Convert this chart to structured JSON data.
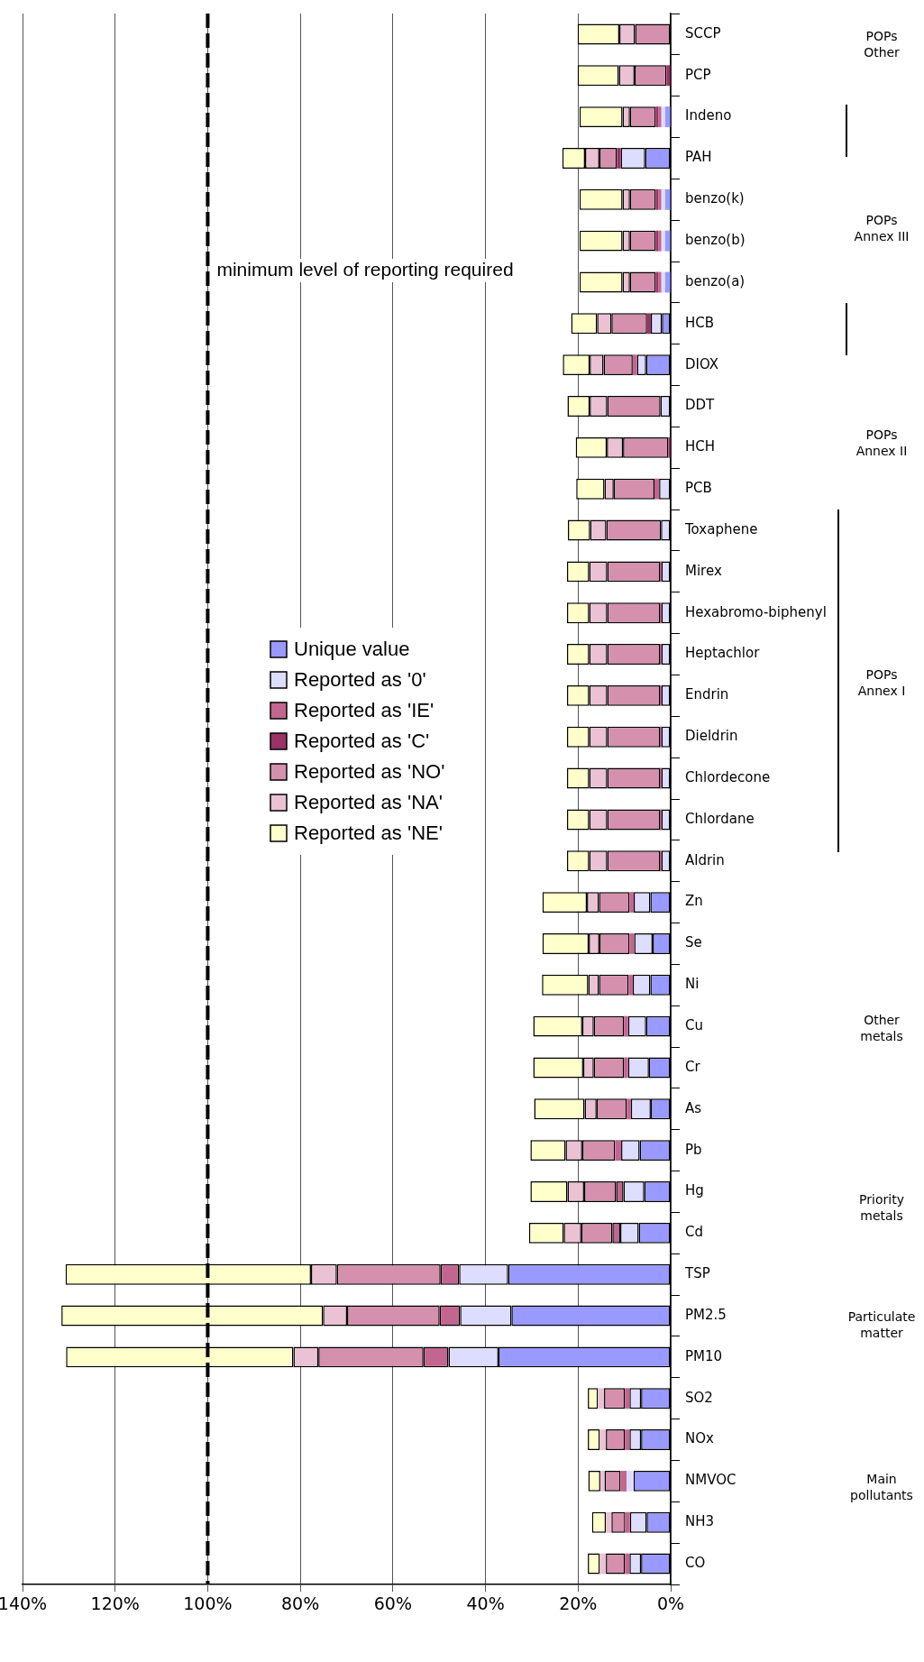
{
  "chart_data": {
    "type": "bar",
    "stacked": true,
    "orientation": "horizontal",
    "categories": [
      "SCCP",
      "PCP",
      "Indeno",
      "PAH",
      "benzo(k)",
      "benzo(b)",
      "benzo(a)",
      "HCB",
      "DIOX",
      "DDT",
      "HCH",
      "PCB",
      "Toxaphene",
      "Mirex",
      "Hexabromo-biphenyl",
      "Heptachlor",
      "Endrin",
      "Dieldrin",
      "Chlordecone",
      "Chlordane",
      "Aldrin",
      "Zn",
      "Se",
      "Ni",
      "Cu",
      "Cr",
      "As",
      "Pb",
      "Hg",
      "Cd",
      "TSP",
      "PM2.5",
      "PM10",
      "SO2",
      "NOx",
      "NMVOC",
      "NH3",
      "CO"
    ],
    "series": [
      {
        "name": "Unique value",
        "color": "#9999ff",
        "values": [
          null,
          null,
          1.2,
          5.5,
          1.2,
          1.2,
          1.2,
          1.9,
          5.3,
          null,
          null,
          null,
          null,
          null,
          null,
          null,
          null,
          null,
          null,
          null,
          null,
          4.4,
          3.9,
          4.4,
          5.3,
          4.7,
          4.3,
          6.7,
          5.7,
          6.9,
          35.1,
          34.4,
          37.2,
          6.4,
          6.4,
          8.0,
          5.2,
          6.4
        ]
      },
      {
        "name": "Reported as '0'",
        "color": "#ddddff",
        "values": [
          null,
          null,
          0.8,
          5.3,
          0.8,
          0.8,
          0.8,
          2.4,
          2.0,
          2.2,
          null,
          2.5,
          2.1,
          2.0,
          2.0,
          2.0,
          2.0,
          2.0,
          2.0,
          2.0,
          2.0,
          3.6,
          4.0,
          3.8,
          3.9,
          4.5,
          4.3,
          4.0,
          4.5,
          4.0,
          10.6,
          11.1,
          10.8,
          2.5,
          2.5,
          1.5,
          3.6,
          2.5
        ]
      },
      {
        "name": "Reported as 'IE'",
        "color": "#c2668f",
        "values": [
          null,
          null,
          0.7,
          null,
          0.7,
          0.7,
          0.7,
          null,
          0.9,
          null,
          null,
          1.0,
          null,
          null,
          null,
          null,
          null,
          null,
          null,
          null,
          null,
          0.9,
          1.0,
          0.9,
          0.9,
          0.9,
          0.9,
          1.3,
          1.6,
          1.7,
          4.0,
          4.4,
          5.4,
          1.0,
          1.0,
          1.3,
          1.0,
          1.0
        ]
      },
      {
        "name": "Reported as 'C'",
        "color": "#993366",
        "values": [
          null,
          0.9,
          0.5,
          0.8,
          0.5,
          0.5,
          0.5,
          0.8,
          null,
          null,
          0.5,
          null,
          null,
          0.3,
          0.3,
          0.3,
          0.3,
          0.3,
          0.3,
          0.3,
          0.3,
          null,
          null,
          null,
          null,
          null,
          null,
          null,
          null,
          null,
          null,
          null,
          null,
          null,
          null,
          null,
          null,
          null
        ]
      },
      {
        "name": "Reported as 'NO'",
        "color": "#d490ad",
        "values": [
          7.7,
          6.9,
          5.6,
          3.8,
          5.6,
          5.6,
          5.6,
          7.7,
          6.3,
          11.5,
          9.8,
          8.8,
          11.8,
          11.4,
          11.4,
          11.4,
          11.4,
          11.4,
          11.4,
          11.4,
          11.4,
          6.6,
          6.5,
          6.4,
          6.5,
          6.5,
          6.5,
          7.1,
          6.9,
          6.7,
          22.4,
          20.0,
          22.7,
          4.5,
          4.1,
          3.5,
          3.0,
          4.1
        ]
      },
      {
        "name": "Reported as 'NA'",
        "color": "#ebc2d3",
        "values": [
          3.4,
          3.4,
          1.6,
          3.1,
          1.6,
          1.6,
          1.6,
          3.1,
          3.0,
          3.8,
          3.5,
          2.0,
          3.5,
          3.9,
          3.9,
          3.9,
          3.9,
          3.9,
          3.9,
          3.9,
          3.9,
          2.6,
          2.3,
          2.3,
          2.5,
          2.3,
          2.6,
          3.6,
          3.6,
          3.8,
          5.6,
          5.2,
          5.4,
          1.3,
          1.3,
          0.9,
          1.2,
          1.3
        ]
      },
      {
        "name": "Reported as 'NE'",
        "color": "#ffffcc",
        "values": [
          9.0,
          8.9,
          9.3,
          4.9,
          9.3,
          9.3,
          9.3,
          5.6,
          5.8,
          4.8,
          6.7,
          6.1,
          4.8,
          4.8,
          4.8,
          4.8,
          4.8,
          4.8,
          4.8,
          4.8,
          4.8,
          9.6,
          10.0,
          10.0,
          10.6,
          10.8,
          10.9,
          7.6,
          8.0,
          7.5,
          53.0,
          56.5,
          49.1,
          2.2,
          2.6,
          2.6,
          3.0,
          2.6
        ]
      }
    ],
    "xlim": [
      140,
      0
    ],
    "xticks": [
      {
        "value": 0,
        "label": "0%"
      },
      {
        "value": 20,
        "label": "20%"
      },
      {
        "value": 40,
        "label": "40%"
      },
      {
        "value": 60,
        "label": "60%"
      },
      {
        "value": 80,
        "label": "80%"
      },
      {
        "value": 100,
        "label": "100%"
      },
      {
        "value": 120,
        "label": "120%"
      },
      {
        "value": 140,
        "label": "140%"
      }
    ],
    "grid": "x",
    "legend": "top",
    "ref_lines": [
      {
        "axis": "x",
        "value": 100,
        "label": "minimum level of reporting required",
        "color": "#000000",
        "line_style": "dashed"
      }
    ],
    "annotations": [
      "Main pollutants",
      "Particulate matter",
      "Priority metals",
      "Other metals",
      "POPs Annex I",
      "POPs Annex II",
      "POPs Annex III",
      "POPs Other"
    ]
  }
}
